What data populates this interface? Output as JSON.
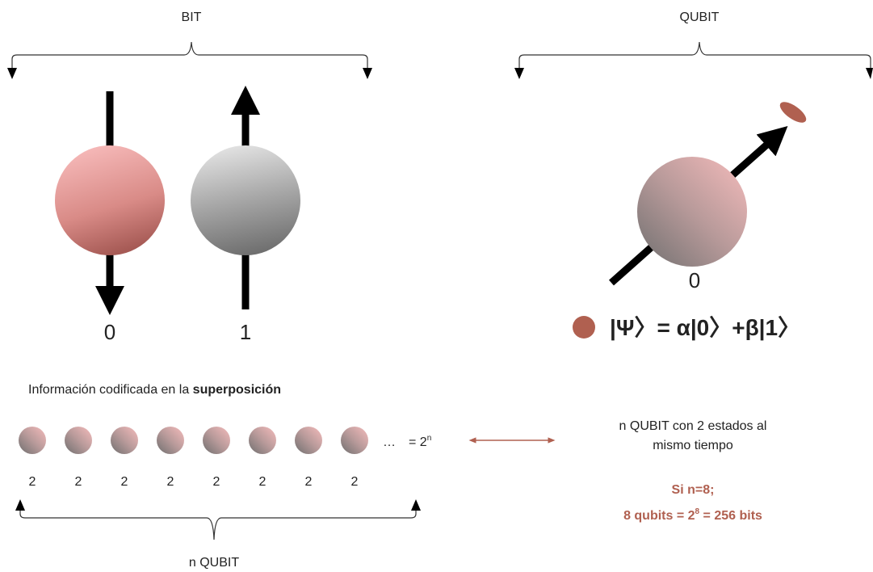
{
  "bit": {
    "label": "BIT",
    "states": [
      "0",
      "1"
    ]
  },
  "qubit": {
    "label": "QUBIT",
    "state": "0",
    "formula": "|Ψ〉= α|0〉+β|1〉"
  },
  "superposition": {
    "caption": "Información codificada en la ",
    "caption_bold": "superposición",
    "qubit_labels": [
      "2",
      "2",
      "2",
      "2",
      "2",
      "2",
      "2",
      "2"
    ],
    "ellipsis": "…",
    "power_base": "= 2",
    "power_exponent": "n",
    "brace_label": "n QUBIT"
  },
  "explanation": {
    "lines": [
      "n QUBIT con 2 estados al",
      "mismo tiempo"
    ],
    "example_title": "Si n=8;",
    "example_base": "8 qubits = 2",
    "example_exponent": "8",
    "example_result": " = 256 bits"
  }
}
